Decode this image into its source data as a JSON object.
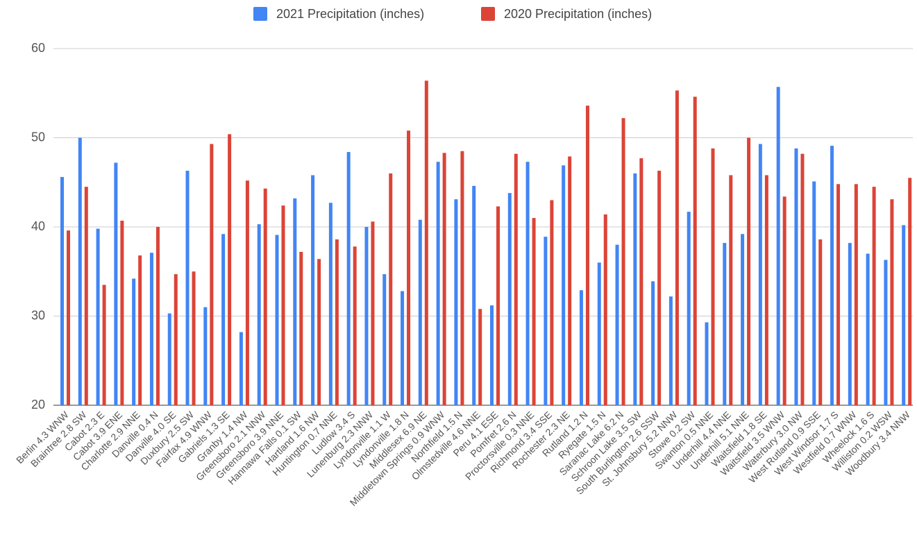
{
  "chart_data": {
    "type": "bar",
    "categories": [
      "Berlin 4.3 WNW",
      "Braintree 2.8 SW",
      "Cabot 2.3 E",
      "Cabot 3.9 ENE",
      "Charlotte 2.9 NNE",
      "Danville 0.4 N",
      "Danville 4.0 SE",
      "Duxbury 2.5 SW",
      "Fairfax 4.9 WNW",
      "Gabriels 1.3 SE",
      "Granby 1.4 NW",
      "Greensboro 2.1 NNW",
      "Greensboro 3.9 NNE",
      "Hannawa Falls 0.1 SW",
      "Hartland 1.6 NW",
      "Huntington 0.7 NNE",
      "Ludlow 3.4 S",
      "Lunenburg 2.3 NNW",
      "Lyndonville 1.1 W",
      "Lyndonville 1.8 N",
      "Middlesex 6.9 NE",
      "Middletown Springs 0.9 WNW",
      "Northfield 1.5 N",
      "Olmstedville 4.6 NNE",
      "Peru 4.1 ESE",
      "Pomfret 2.6 N",
      "Proctorsville 0.3 NNE",
      "Richmond 3.4 SSE",
      "Rochester 2.3 NE",
      "Rutland 1.2 N",
      "Ryegate 1.5 N",
      "Saranac Lake 6.2 N",
      "Schroon Lake 3.5 SW",
      "South Burlington 2.6 SSW",
      "St. Johnsbury 5.2 NNW",
      "Stowe 0.2 SW",
      "Swanton 0.5 NNE",
      "Underhill 4.4 NNE",
      "Underhill 5.1 NNE",
      "Waitsfield 1.8 SE",
      "Waitsfield 3.5 WNW",
      "Waterbury 3.0 NW",
      "West Rutland 0.9 SSE",
      "West Windsor 1.7 S",
      "Westfield 0.7 WNW",
      "Wheelock 1.6 S",
      "Williston 0.2 WSW",
      "Woodbury 3.4 NNW"
    ],
    "series": [
      {
        "name": "2021 Precipitation (inches)",
        "color": "#4285f4",
        "values": [
          45.6,
          50.0,
          39.8,
          47.2,
          34.2,
          37.1,
          30.3,
          46.3,
          31.0,
          39.2,
          28.2,
          40.3,
          39.1,
          43.2,
          45.8,
          42.7,
          48.4,
          40.0,
          34.7,
          32.8,
          40.8,
          47.3,
          43.1,
          44.6,
          31.2,
          43.8,
          47.3,
          38.9,
          46.9,
          32.9,
          36.0,
          38.0,
          46.0,
          33.9,
          32.2,
          41.7,
          29.3,
          38.2,
          39.2,
          49.3,
          55.7,
          48.8,
          45.1,
          49.1,
          38.2,
          37.0,
          36.3,
          40.2
        ]
      },
      {
        "name": "2020 Precipitation (inches)",
        "color": "#db4437",
        "values": [
          39.6,
          44.5,
          33.5,
          40.7,
          36.8,
          40.0,
          34.7,
          35.0,
          49.3,
          50.4,
          45.2,
          44.3,
          42.4,
          37.2,
          36.4,
          38.6,
          37.8,
          40.6,
          46.0,
          50.8,
          56.4,
          48.3,
          48.5,
          30.8,
          42.3,
          48.2,
          41.0,
          43.0,
          47.9,
          53.6,
          41.4,
          52.2,
          47.7,
          46.3,
          55.3,
          54.6,
          48.8,
          45.8,
          50.0,
          45.8,
          43.4,
          48.2,
          38.6,
          44.8,
          44.8,
          44.5,
          43.1,
          45.5
        ]
      }
    ],
    "ylim": [
      20,
      60
    ],
    "yticks": [
      20,
      30,
      40,
      50,
      60
    ],
    "grid": true,
    "legend": "top"
  }
}
